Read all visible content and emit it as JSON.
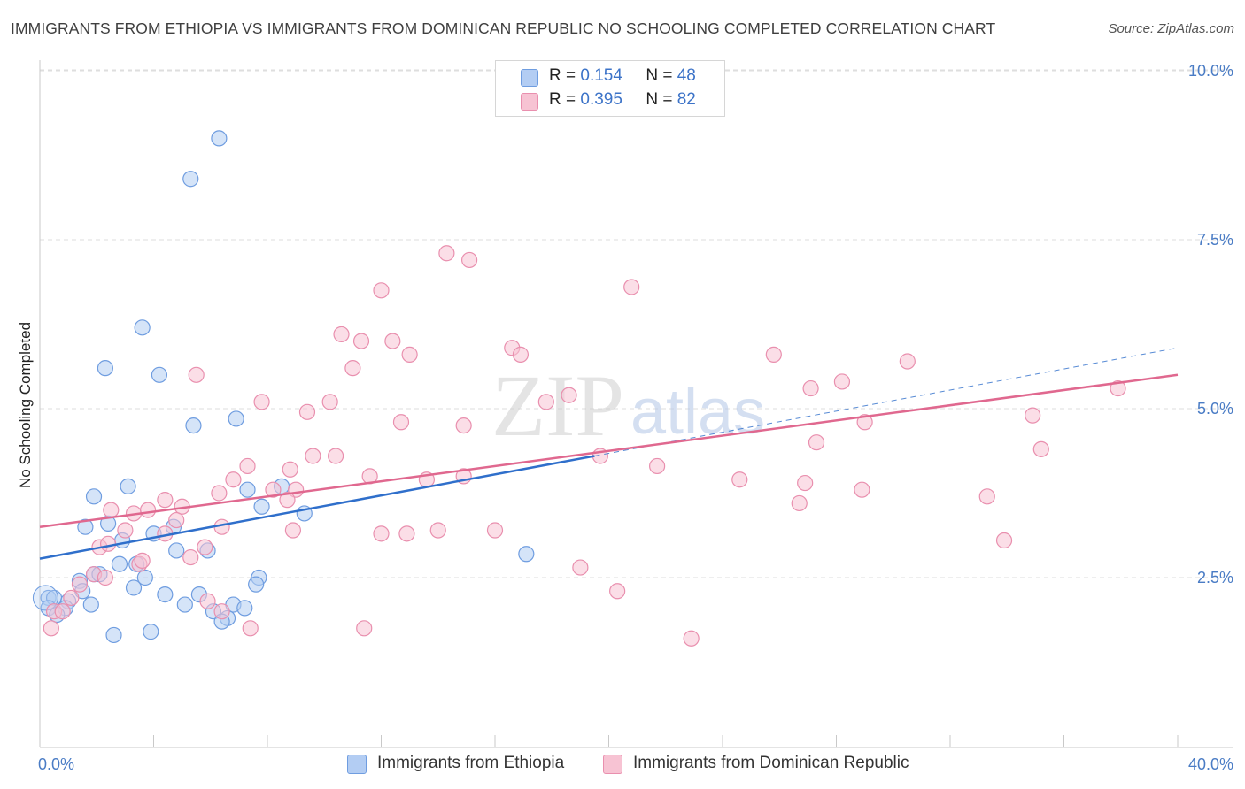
{
  "title": "IMMIGRANTS FROM ETHIOPIA VS IMMIGRANTS FROM DOMINICAN REPUBLIC NO SCHOOLING COMPLETED CORRELATION CHART",
  "source": "Source: ZipAtlas.com",
  "watermark": {
    "zip": "ZIP",
    "atlas": "atlas"
  },
  "legend": {
    "rows": [
      {
        "r_label": "R =",
        "r_value": "0.154",
        "n_label": "N =",
        "n_value": "48"
      },
      {
        "r_label": "R =",
        "r_value": "0.395",
        "n_label": "N =",
        "n_value": "82"
      }
    ]
  },
  "bottom_legend": [
    "Immigrants from Ethiopia",
    "Immigrants from Dominican Republic"
  ],
  "colors": {
    "ethiopia_fill": "#b3cdf3",
    "ethiopia_stroke": "#6f9de0",
    "ethiopia_line": "#2f6fcb",
    "dominican_fill": "#f7c3d3",
    "dominican_stroke": "#e98fae",
    "dominican_line": "#e0688f",
    "tick_text": "#4a7cc5",
    "grid": "#dedede"
  },
  "chart_data": {
    "type": "scatter",
    "title": "IMMIGRANTS FROM ETHIOPIA VS IMMIGRANTS FROM DOMINICAN REPUBLIC NO SCHOOLING COMPLETED CORRELATION CHART",
    "xlabel": "",
    "ylabel": "No Schooling Completed",
    "xlim": [
      0,
      40
    ],
    "ylim": [
      0,
      10.5
    ],
    "x_tick_labels": [
      "0.0%",
      "40.0%"
    ],
    "y_ticks": [
      2.5,
      5.0,
      7.5,
      10.0
    ],
    "y_tick_labels": [
      "2.5%",
      "5.0%",
      "7.5%",
      "10.0%"
    ],
    "grid": true,
    "series": [
      {
        "name": "Immigrants from Ethiopia",
        "R": 0.154,
        "N": 48,
        "trend": {
          "x0": 0,
          "y0": 2.78,
          "x1": 19.5,
          "y1": 4.3,
          "dash_to_x": 40,
          "dash_to_y": 5.9
        },
        "points": [
          [
            6.3,
            9.0
          ],
          [
            5.3,
            8.4
          ],
          [
            3.6,
            6.2
          ],
          [
            2.3,
            5.6
          ],
          [
            4.2,
            5.5
          ],
          [
            6.9,
            4.85
          ],
          [
            5.4,
            4.75
          ],
          [
            3.1,
            3.85
          ],
          [
            8.5,
            3.85
          ],
          [
            1.9,
            3.7
          ],
          [
            7.3,
            3.8
          ],
          [
            7.8,
            3.55
          ],
          [
            9.3,
            3.45
          ],
          [
            2.4,
            3.3
          ],
          [
            1.6,
            3.25
          ],
          [
            4.7,
            3.25
          ],
          [
            4.0,
            3.15
          ],
          [
            2.9,
            3.05
          ],
          [
            4.8,
            2.9
          ],
          [
            5.9,
            2.9
          ],
          [
            17.1,
            2.85
          ],
          [
            3.4,
            2.7
          ],
          [
            2.8,
            2.7
          ],
          [
            1.9,
            2.55
          ],
          [
            2.1,
            2.55
          ],
          [
            3.7,
            2.5
          ],
          [
            7.7,
            2.5
          ],
          [
            1.4,
            2.45
          ],
          [
            7.6,
            2.4
          ],
          [
            3.3,
            2.35
          ],
          [
            1.5,
            2.3
          ],
          [
            4.4,
            2.25
          ],
          [
            5.6,
            2.25
          ],
          [
            0.3,
            2.2
          ],
          [
            0.5,
            2.2
          ],
          [
            1.8,
            2.1
          ],
          [
            1.0,
            2.15
          ],
          [
            6.8,
            2.1
          ],
          [
            5.1,
            2.1
          ],
          [
            7.2,
            2.05
          ],
          [
            0.3,
            2.05
          ],
          [
            0.9,
            2.05
          ],
          [
            6.1,
            2.0
          ],
          [
            0.6,
            1.95
          ],
          [
            6.6,
            1.9
          ],
          [
            6.4,
            1.85
          ],
          [
            2.6,
            1.65
          ],
          [
            3.9,
            1.7
          ]
        ]
      },
      {
        "name": "Immigrants from Dominican Republic",
        "R": 0.395,
        "N": 82,
        "trend": {
          "x0": 0,
          "y0": 3.25,
          "x1": 40,
          "y1": 5.5
        },
        "points": [
          [
            14.3,
            7.3
          ],
          [
            15.1,
            7.2
          ],
          [
            20.8,
            6.8
          ],
          [
            12.0,
            6.75
          ],
          [
            10.6,
            6.1
          ],
          [
            11.3,
            6.0
          ],
          [
            12.4,
            6.0
          ],
          [
            16.6,
            5.9
          ],
          [
            13.0,
            5.8
          ],
          [
            16.9,
            5.8
          ],
          [
            25.8,
            5.8
          ],
          [
            30.5,
            5.7
          ],
          [
            5.5,
            5.5
          ],
          [
            11.0,
            5.6
          ],
          [
            28.2,
            5.4
          ],
          [
            27.1,
            5.3
          ],
          [
            37.9,
            5.3
          ],
          [
            18.6,
            5.2
          ],
          [
            7.8,
            5.1
          ],
          [
            10.2,
            5.1
          ],
          [
            17.8,
            5.1
          ],
          [
            9.4,
            4.95
          ],
          [
            34.9,
            4.9
          ],
          [
            12.7,
            4.8
          ],
          [
            29.0,
            4.8
          ],
          [
            14.9,
            4.75
          ],
          [
            27.3,
            4.5
          ],
          [
            35.2,
            4.4
          ],
          [
            9.6,
            4.3
          ],
          [
            10.4,
            4.3
          ],
          [
            19.7,
            4.3
          ],
          [
            7.3,
            4.15
          ],
          [
            8.8,
            4.1
          ],
          [
            21.7,
            4.15
          ],
          [
            6.8,
            3.95
          ],
          [
            11.6,
            4.0
          ],
          [
            13.6,
            3.95
          ],
          [
            14.9,
            4.0
          ],
          [
            24.6,
            3.95
          ],
          [
            26.9,
            3.9
          ],
          [
            28.9,
            3.8
          ],
          [
            9.0,
            3.8
          ],
          [
            8.2,
            3.8
          ],
          [
            6.3,
            3.75
          ],
          [
            8.7,
            3.65
          ],
          [
            33.3,
            3.7
          ],
          [
            26.7,
            3.6
          ],
          [
            4.4,
            3.65
          ],
          [
            2.5,
            3.5
          ],
          [
            3.3,
            3.45
          ],
          [
            3.8,
            3.5
          ],
          [
            5.0,
            3.55
          ],
          [
            4.8,
            3.35
          ],
          [
            6.4,
            3.25
          ],
          [
            3.0,
            3.2
          ],
          [
            4.4,
            3.15
          ],
          [
            8.9,
            3.2
          ],
          [
            12.0,
            3.15
          ],
          [
            12.9,
            3.15
          ],
          [
            14.0,
            3.2
          ],
          [
            16.0,
            3.2
          ],
          [
            2.1,
            2.95
          ],
          [
            2.4,
            3.0
          ],
          [
            5.3,
            2.8
          ],
          [
            3.5,
            2.7
          ],
          [
            3.6,
            2.75
          ],
          [
            5.8,
            2.95
          ],
          [
            33.9,
            3.05
          ],
          [
            19.0,
            2.65
          ],
          [
            1.9,
            2.55
          ],
          [
            2.3,
            2.5
          ],
          [
            1.4,
            2.4
          ],
          [
            1.1,
            2.2
          ],
          [
            0.5,
            2.0
          ],
          [
            20.3,
            2.3
          ],
          [
            6.4,
            2.0
          ],
          [
            5.9,
            2.15
          ],
          [
            7.4,
            1.75
          ],
          [
            0.4,
            1.75
          ],
          [
            11.4,
            1.75
          ],
          [
            22.9,
            1.6
          ],
          [
            0.8,
            2.0
          ]
        ]
      }
    ]
  }
}
